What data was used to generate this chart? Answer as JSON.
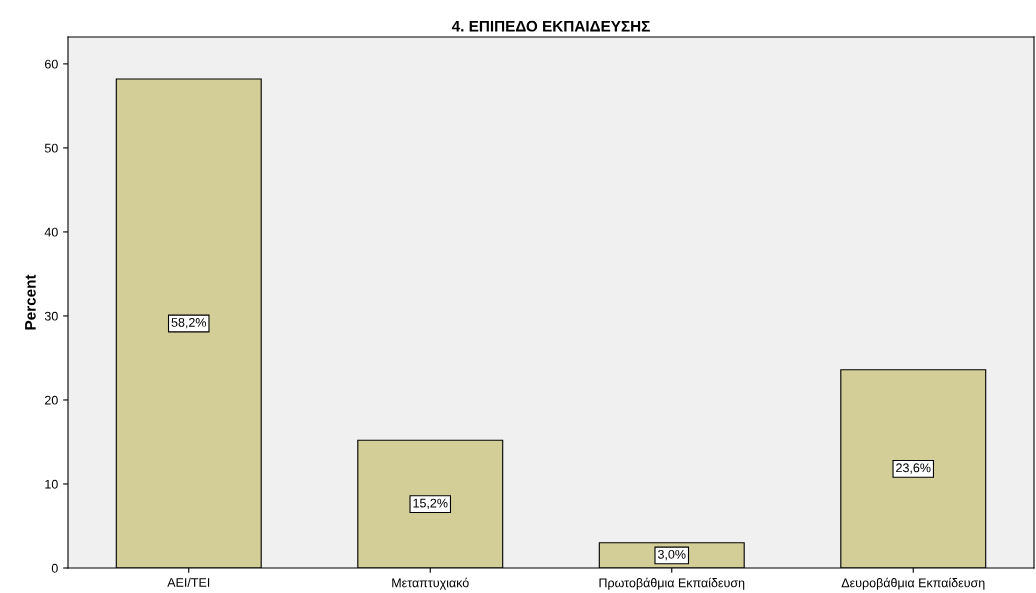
{
  "chart_data": {
    "type": "bar",
    "title": "4. ΕΠΙΠΕΔΟ ΕΚΠΑΙΔΕΥΣΗΣ",
    "ylabel": "Percent",
    "categories": [
      "ΑΕΙ/ΤΕΙ",
      "Μεταπτυχιακό",
      "Πρωτοβάθμια Εκπαίδευση",
      "Δευροβάθμια Εκπαίδευση"
    ],
    "values": [
      58.2,
      15.2,
      3.0,
      23.6
    ],
    "value_labels": [
      "58,2%",
      "15,2%",
      "3,0%",
      "23,6%"
    ],
    "color": "#d3ce97",
    "ylim": [
      0,
      63.2
    ],
    "yticks": [
      0,
      10,
      20,
      30,
      40,
      50,
      60
    ],
    "grid": false
  }
}
